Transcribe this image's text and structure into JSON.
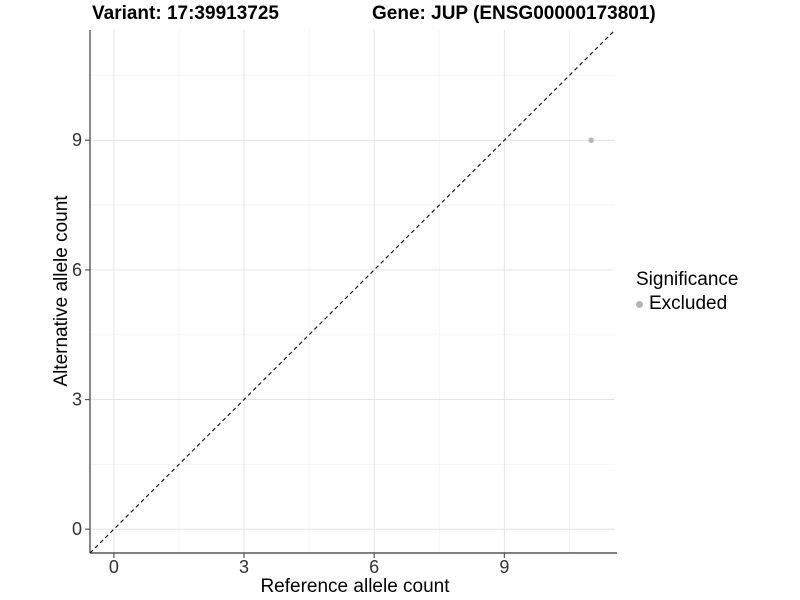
{
  "header": {
    "variant_title": "Variant: 17:39913725",
    "gene_title": "Gene: JUP (ENSG00000173801)"
  },
  "chart_data": {
    "type": "scatter",
    "title_left": "Variant: 17:39913725",
    "title_right": "Gene: JUP (ENSG00000173801)",
    "xlabel": "Reference allele count",
    "ylabel": "Alternative allele count",
    "xlim": [
      -0.55,
      11.55
    ],
    "ylim": [
      -0.55,
      11.55
    ],
    "xticks": [
      0,
      3,
      6,
      9
    ],
    "yticks": [
      0,
      3,
      6,
      9
    ],
    "minor_ticks": [
      1.5,
      4.5,
      7.5,
      10.5
    ],
    "grid": "major+minor",
    "points": [
      {
        "x": 11,
        "y": 9,
        "series": "Excluded"
      }
    ],
    "identity_line": {
      "equation": "y = x",
      "style": "dashed",
      "color": "#1a1a1a"
    },
    "legend": {
      "title": "Significance",
      "position": "right",
      "items": [
        {
          "label": "Excluded",
          "color": "#b5b5b5"
        }
      ]
    },
    "colors": {
      "point": "#b5b5b5",
      "grid_major": "#e4e4e4",
      "grid_minor": "#f2f2f2",
      "axis_line": "#555555",
      "tick_mark": "#555555",
      "tick_label": "#333333",
      "background": "#ffffff"
    }
  }
}
